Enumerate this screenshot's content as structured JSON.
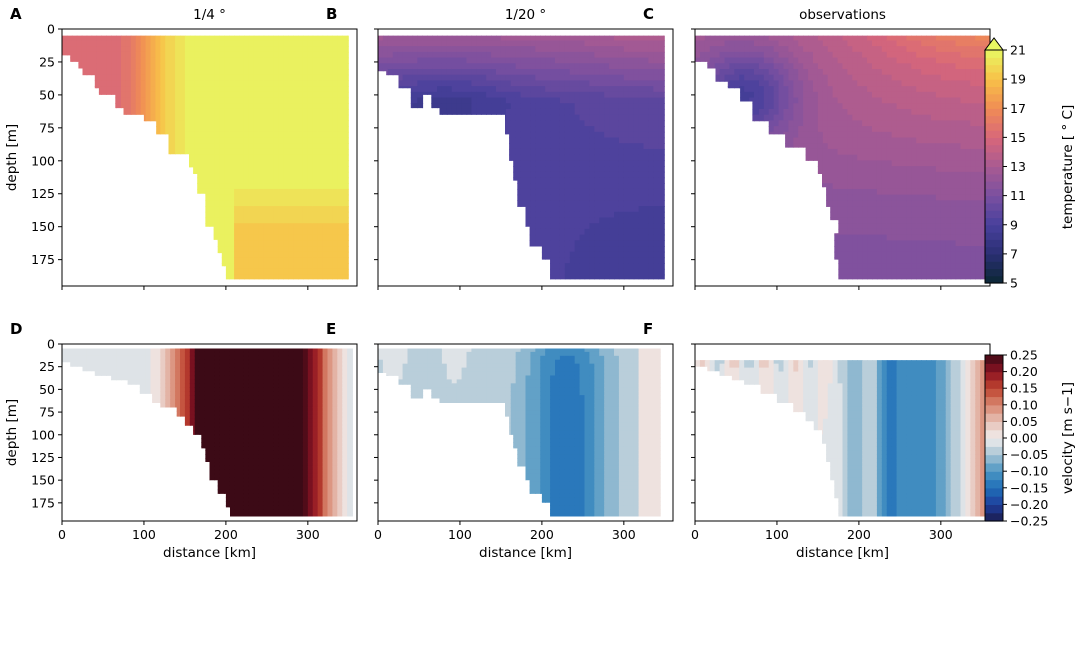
{
  "chart_data": [
    {
      "id": "A",
      "panel_label": "A",
      "title": "1/4 °",
      "type": "heatmap",
      "variable": "temperature",
      "colormap": "thermal",
      "xlabel": "",
      "ylabel": "depth [m]",
      "xlim": [
        0,
        360
      ],
      "ylim": [
        195,
        0
      ],
      "xticks": [
        0,
        100,
        200,
        300
      ],
      "yticks": [
        0,
        25,
        50,
        75,
        100,
        125,
        150,
        175
      ],
      "show_xticklabels": false,
      "show_yticklabels": true,
      "field": {
        "warm_core": 21,
        "shelf_value": 15,
        "front_km": 110,
        "front_width_km": 40,
        "deep_gradient": -2,
        "deep_x_km": 290
      },
      "data_region": {
        "x_end_km": 350,
        "max_depth_m": 190,
        "bathymetry": [
          [
            0,
            15
          ],
          [
            10,
            20
          ],
          [
            20,
            25
          ],
          [
            25,
            30
          ],
          [
            40,
            35
          ],
          [
            45,
            45
          ],
          [
            65,
            50
          ],
          [
            75,
            60
          ],
          [
            100,
            65
          ],
          [
            115,
            70
          ],
          [
            130,
            80
          ],
          [
            155,
            95
          ],
          [
            160,
            105
          ],
          [
            165,
            110
          ],
          [
            175,
            125
          ],
          [
            185,
            150
          ],
          [
            190,
            160
          ],
          [
            195,
            170
          ],
          [
            200,
            180
          ],
          [
            195,
            190
          ]
        ]
      }
    },
    {
      "id": "B",
      "panel_label": "B",
      "title": "1/20 °",
      "type": "heatmap",
      "variable": "temperature",
      "colormap": "thermal",
      "xlabel": "",
      "ylabel": "",
      "xlim": [
        0,
        360
      ],
      "ylim": [
        195,
        0
      ],
      "xticks": [
        0,
        100,
        200,
        300
      ],
      "yticks": [
        0,
        25,
        50,
        75,
        100,
        125,
        150,
        175
      ],
      "show_xticklabels": false,
      "show_yticklabels": false,
      "field": {
        "surface_value": 13,
        "core_value": 9.5,
        "deep_value": 8.5,
        "core_x_km": 80,
        "core_depth_m": 55
      },
      "data_region": {
        "x_end_km": 350,
        "max_depth_m": 190,
        "bathymetry": [
          [
            0,
            28
          ],
          [
            10,
            32
          ],
          [
            25,
            35
          ],
          [
            40,
            45
          ],
          [
            45,
            60
          ],
          [
            55,
            60
          ],
          [
            65,
            50
          ],
          [
            75,
            60
          ],
          [
            100,
            65
          ],
          [
            155,
            65
          ],
          [
            160,
            80
          ],
          [
            165,
            100
          ],
          [
            170,
            115
          ],
          [
            180,
            135
          ],
          [
            185,
            150
          ],
          [
            200,
            165
          ],
          [
            210,
            175
          ],
          [
            210,
            190
          ]
        ]
      }
    },
    {
      "id": "C",
      "panel_label": "C",
      "title": "observations",
      "type": "heatmap",
      "variable": "temperature",
      "colormap": "thermal",
      "xlabel": "",
      "ylabel": "",
      "xlim": [
        0,
        360
      ],
      "ylim": [
        195,
        0
      ],
      "xticks": [
        0,
        100,
        200,
        300
      ],
      "yticks": [
        0,
        25,
        50,
        75,
        100,
        125,
        150,
        175
      ],
      "show_xticklabels": false,
      "show_yticklabels": false,
      "field": {
        "offshore_surface": 17.5,
        "shelf_cold": 9,
        "deep_value": 11,
        "mid_value": 13
      },
      "data_region": {
        "x_end_km": 360,
        "max_depth_m": 190,
        "bathymetry": [
          [
            0,
            20
          ],
          [
            15,
            25
          ],
          [
            25,
            30
          ],
          [
            40,
            40
          ],
          [
            55,
            45
          ],
          [
            70,
            55
          ],
          [
            90,
            70
          ],
          [
            110,
            80
          ],
          [
            135,
            90
          ],
          [
            150,
            100
          ],
          [
            155,
            110
          ],
          [
            160,
            120
          ],
          [
            165,
            135
          ],
          [
            175,
            145
          ],
          [
            170,
            155
          ],
          [
            175,
            175
          ],
          [
            175,
            190
          ]
        ]
      }
    },
    {
      "id": "D",
      "panel_label": "D",
      "title": "",
      "type": "heatmap",
      "variable": "velocity",
      "colormap": "balance",
      "xlabel": "distance [km]",
      "ylabel": "depth [m]",
      "xlim": [
        0,
        360
      ],
      "ylim": [
        195,
        0
      ],
      "xticks": [
        0,
        100,
        200,
        300
      ],
      "yticks": [
        0,
        25,
        50,
        75,
        100,
        125,
        150,
        175
      ],
      "show_xticklabels": true,
      "show_yticklabels": true,
      "field": {
        "jet_value": 0.25,
        "jet_x_km": [
          165,
          295
        ],
        "edge_values": [
          -0.02,
          0.05,
          0.12,
          0.2
        ],
        "offshore_edge_km": 300
      },
      "data_region": {
        "x_end_km": 355,
        "max_depth_m": 190,
        "bathymetry": [
          [
            0,
            10
          ],
          [
            10,
            20
          ],
          [
            25,
            25
          ],
          [
            40,
            30
          ],
          [
            60,
            35
          ],
          [
            80,
            40
          ],
          [
            95,
            45
          ],
          [
            110,
            55
          ],
          [
            120,
            65
          ],
          [
            140,
            70
          ],
          [
            150,
            80
          ],
          [
            160,
            90
          ],
          [
            170,
            100
          ],
          [
            175,
            115
          ],
          [
            180,
            130
          ],
          [
            190,
            150
          ],
          [
            200,
            165
          ],
          [
            205,
            180
          ],
          [
            205,
            190
          ]
        ]
      }
    },
    {
      "id": "E",
      "panel_label": "E",
      "title": "",
      "type": "heatmap",
      "variable": "velocity",
      "colormap": "balance",
      "xlabel": "distance [km]",
      "ylabel": "",
      "xlim": [
        0,
        360
      ],
      "ylim": [
        195,
        0
      ],
      "xticks": [
        0,
        100,
        200,
        300
      ],
      "yticks": [
        0,
        25,
        50,
        75,
        100,
        125,
        150,
        175
      ],
      "show_xticklabels": true,
      "show_yticklabels": false,
      "field": {
        "jet_min": -0.14,
        "jet_x_km": 230,
        "jet_width_km": 65,
        "shelf_value": -0.03,
        "offshore_value": 0.02
      },
      "data_region": {
        "x_end_km": 345,
        "max_depth_m": 190,
        "bathymetry": [
          [
            0,
            28
          ],
          [
            10,
            32
          ],
          [
            25,
            35
          ],
          [
            40,
            45
          ],
          [
            45,
            60
          ],
          [
            55,
            60
          ],
          [
            65,
            50
          ],
          [
            75,
            60
          ],
          [
            100,
            65
          ],
          [
            155,
            65
          ],
          [
            160,
            80
          ],
          [
            165,
            100
          ],
          [
            170,
            115
          ],
          [
            180,
            135
          ],
          [
            185,
            150
          ],
          [
            200,
            165
          ],
          [
            210,
            175
          ],
          [
            210,
            190
          ]
        ]
      }
    },
    {
      "id": "F",
      "panel_label": "F",
      "title": "",
      "type": "heatmap",
      "variable": "velocity",
      "colormap": "balance",
      "xlabel": "distance [km]",
      "ylabel": "",
      "xlim": [
        0,
        360
      ],
      "ylim": [
        195,
        0
      ],
      "xticks": [
        0,
        100,
        200,
        300
      ],
      "yticks": [
        0,
        25,
        50,
        75,
        100,
        125,
        150,
        175
      ],
      "show_xticklabels": true,
      "show_yticklabels": false,
      "field": {
        "band_min": -0.12,
        "band_x_km": [
          210,
          310
        ],
        "shelf_value": 0.0,
        "edge_value": 0.1
      },
      "data_region": {
        "x_end_km": 360,
        "max_depth_m": 190,
        "top_depth_m": 18,
        "bathymetry": [
          [
            0,
            20
          ],
          [
            15,
            25
          ],
          [
            30,
            30
          ],
          [
            45,
            35
          ],
          [
            60,
            40
          ],
          [
            80,
            45
          ],
          [
            100,
            55
          ],
          [
            120,
            65
          ],
          [
            135,
            75
          ],
          [
            145,
            85
          ],
          [
            155,
            95
          ],
          [
            160,
            110
          ],
          [
            165,
            130
          ],
          [
            170,
            150
          ],
          [
            175,
            170
          ],
          [
            180,
            190
          ]
        ]
      }
    }
  ],
  "colorbars": [
    {
      "id": "temperature",
      "label": "temperature [$^\\circ$C]",
      "label_text": "temperature [ ° C]",
      "vmin": 5,
      "vmax": 21,
      "extend": "max",
      "ticks": [
        "5",
        "7",
        "9",
        "11",
        "13",
        "15",
        "17",
        "19",
        "21"
      ],
      "tick_values": [
        5,
        7,
        9,
        11,
        13,
        15,
        17,
        19,
        21
      ],
      "colors": {
        "5": "#0b2733",
        "7": "#2a2f73",
        "9": "#48409c",
        "11": "#7a50a0",
        "13": "#a85a92",
        "15": "#d8677a",
        "17": "#f08c55",
        "19": "#f8c048",
        "21": "#e8f862"
      }
    },
    {
      "id": "velocity",
      "label_text": "velocity [m s−1]",
      "vmin": -0.25,
      "vmax": 0.25,
      "extend": "none",
      "ticks": [
        "0.25",
        "0.20",
        "0.15",
        "0.10",
        "0.05",
        "0.00",
        "−0.05",
        "−0.10",
        "−0.15",
        "−0.20",
        "−0.25"
      ],
      "tick_values": [
        0.25,
        0.2,
        0.15,
        0.1,
        0.05,
        0,
        -0.05,
        -0.1,
        -0.15,
        -0.2,
        -0.25
      ],
      "colors": {
        "-0.25": "#1b1b4c",
        "-0.2": "#1f3e9c",
        "-0.15": "#1f6fb8",
        "-0.1": "#4b95c3",
        "-0.05": "#a6c4d4",
        "0": "#f1eded",
        "0.05": "#e6c1b6",
        "0.1": "#d88770",
        "0.15": "#bf4530",
        "0.2": "#8e1323",
        "0.25": "#3c0a16"
      }
    }
  ]
}
